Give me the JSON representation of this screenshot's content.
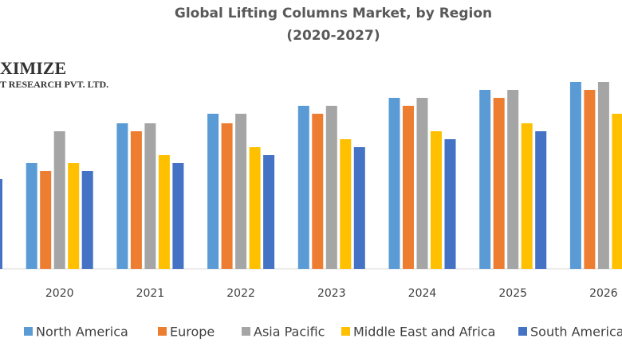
{
  "chart_data": {
    "type": "bar",
    "title": "Global Lifting Columns Market, by Region",
    "subtitle": "(2020-2027)",
    "logo": {
      "line1": "XIMIZE",
      "line2": "T RESEARCH PVT. LTD."
    },
    "categories": [
      null,
      "2020",
      "2021",
      "2022",
      "2023",
      "2024",
      "2025",
      "2026"
    ],
    "series": [
      {
        "name": "North America",
        "color": "#5b9bd5",
        "values": [
          null,
          133,
          183,
          195,
          205,
          215,
          225,
          235
        ]
      },
      {
        "name": "Europe",
        "color": "#ed7d31",
        "values": [
          null,
          123,
          173,
          183,
          195,
          205,
          215,
          225
        ]
      },
      {
        "name": "Asia Pacific",
        "color": "#a5a5a5",
        "values": [
          null,
          173,
          183,
          195,
          205,
          215,
          225,
          235
        ]
      },
      {
        "name": "Middle East and Africa",
        "color": "#ffc000",
        "values": [
          null,
          133,
          143,
          153,
          163,
          173,
          183,
          195
        ]
      },
      {
        "name": "South America",
        "color": "#4472c4",
        "values": [
          113,
          123,
          133,
          143,
          153,
          163,
          173,
          null
        ]
      }
    ],
    "ylim": [
      0,
      338
    ],
    "legend": "bottom"
  }
}
